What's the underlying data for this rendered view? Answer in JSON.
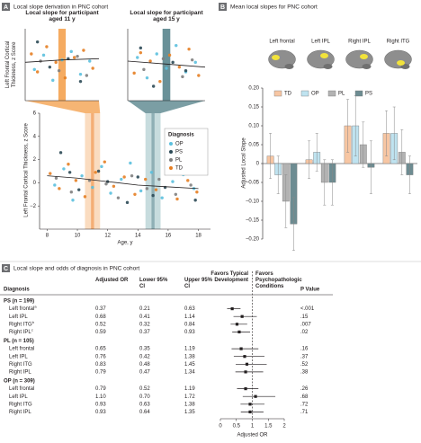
{
  "chart_data": [
    {
      "type": "scatter",
      "panel": "A",
      "title": "Local slope derivation in PNC cohort",
      "y_label": "Left Frontal Cortical Thickness, z Score",
      "x_label": "Age, y",
      "legend_title": "Diagnosis",
      "xlim": [
        7.5,
        18.8
      ],
      "ylim": [
        -4,
        6
      ],
      "xticks": [
        8,
        10,
        12,
        14,
        16,
        18
      ],
      "yticks": [
        {
          "value": -2,
          "label": "−2"
        },
        0,
        2,
        4,
        6
      ],
      "highlights": [
        {
          "range": [
            10.5,
            11.5
          ],
          "color": "#f9d3b0"
        },
        {
          "range": [
            10.9,
            11.1
          ],
          "color": "#f3a361"
        },
        {
          "range": [
            14.5,
            15.5
          ],
          "color": "#b9d3d6"
        },
        {
          "range": [
            14.9,
            15.1
          ],
          "color": "#7fa4aa"
        }
      ],
      "series": [
        {
          "name": "OP",
          "color": "#5bc0de",
          "x": [
            8.5,
            9.1,
            9.7,
            10.3,
            11.0,
            11.6,
            12.2,
            12.9,
            13.5,
            14.2,
            14.9,
            15.6,
            16.3,
            17.0,
            17.7
          ],
          "values": [
            -0.2,
            1.2,
            -1.5,
            0.6,
            -0.4,
            1.4,
            -0.9,
            0.3,
            1.7,
            -0.7,
            0.9,
            -1.3,
            0.1,
            0.7,
            -0.5
          ]
        },
        {
          "name": "PS",
          "color": "#2c4a56",
          "x": [
            8.9,
            9.5,
            10.1,
            11.4,
            12.0,
            13.3,
            14.0,
            15.0,
            15.8,
            16.9,
            17.8
          ],
          "values": [
            2.6,
            0.9,
            -0.6,
            1.0,
            0.1,
            -1.7,
            0.5,
            -1.1,
            -0.4,
            0.8,
            -1.5
          ]
        },
        {
          "name": "PL",
          "color": "#7f7f7f",
          "x": [
            8.6,
            9.6,
            10.8,
            11.9,
            12.7,
            13.6,
            14.6,
            15.4,
            16.5,
            17.5
          ],
          "values": [
            0.4,
            -0.8,
            0.2,
            -0.1,
            -1.3,
            0.6,
            -0.5,
            0.3,
            -1.0,
            -0.2
          ]
        },
        {
          "name": "TD",
          "color": "#e67e22",
          "x": [
            8.2,
            8.8,
            9.4,
            9.9,
            10.5,
            11.2,
            11.8,
            12.4,
            13.1,
            13.8,
            14.5,
            15.2,
            15.9,
            16.6,
            17.3,
            17.9
          ],
          "values": [
            0.8,
            -0.5,
            1.6,
            0.2,
            -1.2,
            0.9,
            1.8,
            -0.3,
            0.5,
            -1.0,
            0.3,
            -0.6,
            1.1,
            -1.4,
            0.2,
            -0.8
          ]
        }
      ],
      "fit_x": [
        8,
        10,
        12,
        14,
        16,
        18
      ],
      "fit_y": [
        0.6,
        0.4,
        0.1,
        -0.2,
        -0.35,
        -0.5
      ],
      "fit_color": "#231f20"
    },
    {
      "type": "scatter",
      "title": "Local slope for participant aged 11 y",
      "y_label": "Left Frontal Cortical Thickness, z Score",
      "xlim": [
        10.4,
        11.6
      ],
      "ylim": [
        -3,
        3
      ],
      "band": {
        "range": [
          10.94,
          11.06
        ],
        "color": "#f39c45"
      },
      "series": [
        {
          "color": "#e67e22",
          "x": [
            10.5,
            10.6,
            10.75,
            10.9,
            11.05,
            11.2,
            11.35,
            11.5
          ],
          "values": [
            0.9,
            -0.6,
            1.5,
            0.2,
            -1.1,
            0.6,
            1.2,
            -0.3
          ]
        },
        {
          "color": "#5bc0de",
          "x": [
            10.55,
            10.7,
            10.85,
            11.0,
            11.15,
            11.3,
            11.45
          ],
          "values": [
            -0.4,
            0.8,
            -1.3,
            0.4,
            1.1,
            -0.8,
            0.3
          ]
        },
        {
          "color": "#7f7f7f",
          "x": [
            10.65,
            10.95,
            11.25,
            11.4
          ],
          "values": [
            0.3,
            -0.5,
            0.7,
            -0.9
          ]
        },
        {
          "color": "#2c4a56",
          "x": [
            10.6,
            10.8,
            11.1,
            11.3
          ],
          "values": [
            1.9,
            -0.2,
            0.5,
            -1.4
          ]
        }
      ],
      "fit_x": [
        10.4,
        11.0,
        11.6
      ],
      "fit_y": [
        0.2,
        0.4,
        0.5
      ],
      "fit_color": "#231f20"
    },
    {
      "type": "scatter",
      "title": "Local slope for participant aged 15 y",
      "xlim": [
        14.4,
        15.6
      ],
      "ylim": [
        -3,
        3
      ],
      "band": {
        "range": [
          14.94,
          15.06
        ],
        "color": "#4f7e86"
      },
      "series": [
        {
          "color": "#e67e22",
          "x": [
            14.5,
            14.6,
            14.75,
            14.9,
            15.05,
            15.2,
            15.35,
            15.5
          ],
          "values": [
            -0.7,
            1.0,
            0.3,
            -1.4,
            0.8,
            -0.2,
            1.3,
            -0.9
          ]
        },
        {
          "color": "#5bc0de",
          "x": [
            14.55,
            14.7,
            14.85,
            15.0,
            15.15,
            15.3,
            15.45
          ],
          "values": [
            0.6,
            -1.1,
            0.9,
            -0.3,
            1.6,
            -0.6,
            0.2
          ]
        },
        {
          "color": "#7f7f7f",
          "x": [
            14.65,
            14.95,
            15.25,
            15.4
          ],
          "values": [
            -0.4,
            0.5,
            -1.0,
            0.4
          ]
        },
        {
          "color": "#2c4a56",
          "x": [
            14.6,
            14.8,
            15.1,
            15.3
          ],
          "values": [
            1.4,
            -1.8,
            0.2,
            -0.5
          ]
        }
      ],
      "fit_x": [
        14.4,
        15.0,
        15.6
      ],
      "fit_y": [
        0.3,
        0.05,
        -0.2
      ],
      "fit_color": "#231f20"
    },
    {
      "type": "bar",
      "panel": "B",
      "title": "Mean local slopes for PNC cohort",
      "y_label": "Adjusted Local Slope",
      "categories": [
        "Left frontal",
        "Left IPL",
        "Right IPL",
        "Right ITG"
      ],
      "series": [
        {
          "name": "TD",
          "color": "#f7c6a3",
          "values": [
            0.02,
            0.01,
            0.1,
            0.08
          ],
          "errors": [
            0.06,
            0.05,
            0.07,
            0.06
          ]
        },
        {
          "name": "OP",
          "color": "#bfe3f0",
          "values": [
            -0.03,
            0.03,
            0.1,
            0.08
          ],
          "errors": [
            0.05,
            0.05,
            0.08,
            0.07
          ]
        },
        {
          "name": "PL",
          "color": "#b3b3b3",
          "values": [
            -0.1,
            -0.05,
            0.05,
            0.03
          ],
          "errors": [
            0.07,
            0.06,
            0.06,
            0.06
          ]
        },
        {
          "name": "PS",
          "color": "#6d8c92",
          "values": [
            -0.16,
            -0.05,
            -0.01,
            -0.03
          ],
          "errors": [
            0.07,
            0.06,
            0.07,
            0.05
          ]
        }
      ],
      "ylim": [
        -0.2,
        0.2
      ],
      "yticks": [
        {
          "value": 0.2,
          "label": "0.20"
        },
        {
          "value": 0.15,
          "label": "0.15"
        },
        {
          "value": 0.1,
          "label": "0.10"
        },
        {
          "value": 0.05,
          "label": "0.05"
        },
        0,
        {
          "value": -0.05,
          "label": "−0.05"
        },
        {
          "value": -0.1,
          "label": "−0.10"
        },
        {
          "value": -0.15,
          "label": "−0.15"
        },
        {
          "value": -0.2,
          "label": "−0.20"
        }
      ]
    },
    {
      "type": "forest",
      "panel": "C",
      "title": "Local slope and odds of diagnosis in PNC cohort",
      "columns": [
        "Diagnosis",
        "Adjusted OR",
        "Lower 95% CI",
        "Upper 95% CI",
        "P Value"
      ],
      "favors_left": "Favors Typical Development",
      "favors_right": "Favors Psychopathologic Conditions",
      "x_label": "Adjusted OR",
      "xlim": [
        0,
        2
      ],
      "xticks": [
        0,
        0.5,
        1,
        1.5,
        2
      ],
      "reference": 1,
      "color": "#231f20",
      "groups": [
        {
          "name": "PS (n = 199)",
          "rows": [
            {
              "label": "Left frontal",
              "note": "a",
              "or": "0.37",
              "lower": "0.21",
              "upper": "0.63",
              "p": "<.001"
            },
            {
              "label": "Left IPL",
              "or": "0.68",
              "lower": "0.41",
              "upper": "1.14",
              "p": ".15"
            },
            {
              "label": "Right ITG",
              "note": "b",
              "or": "0.52",
              "lower": "0.32",
              "upper": "0.84",
              "p": ".007"
            },
            {
              "label": "Right IPL",
              "note": "c",
              "or": "0.59",
              "lower": "0.37",
              "upper": "0.93",
              "p": ".02"
            }
          ]
        },
        {
          "name": "PL (n = 105)",
          "rows": [
            {
              "label": "Left frontal",
              "or": "0.65",
              "lower": "0.35",
              "upper": "1.19",
              "p": ".16"
            },
            {
              "label": "Left IPL",
              "or": "0.76",
              "lower": "0.42",
              "upper": "1.38",
              "p": ".37"
            },
            {
              "label": "Right ITG",
              "or": "0.83",
              "lower": "0.48",
              "upper": "1.45",
              "p": ".52"
            },
            {
              "label": "Right IPL",
              "or": "0.79",
              "lower": "0.47",
              "upper": "1.34",
              "p": ".38"
            }
          ]
        },
        {
          "name": "OP (n = 309)",
          "rows": [
            {
              "label": "Left frontal",
              "or": "0.79",
              "lower": "0.52",
              "upper": "1.19",
              "p": ".26"
            },
            {
              "label": "Left IPL",
              "or": "1.10",
              "lower": "0.70",
              "upper": "1.72",
              "p": ".68"
            },
            {
              "label": "Right ITG",
              "or": "0.93",
              "lower": "0.63",
              "upper": "1.38",
              "p": ".72"
            },
            {
              "label": "Right IPL",
              "or": "0.93",
              "lower": "0.64",
              "upper": "1.35",
              "p": ".71"
            }
          ]
        }
      ]
    }
  ]
}
